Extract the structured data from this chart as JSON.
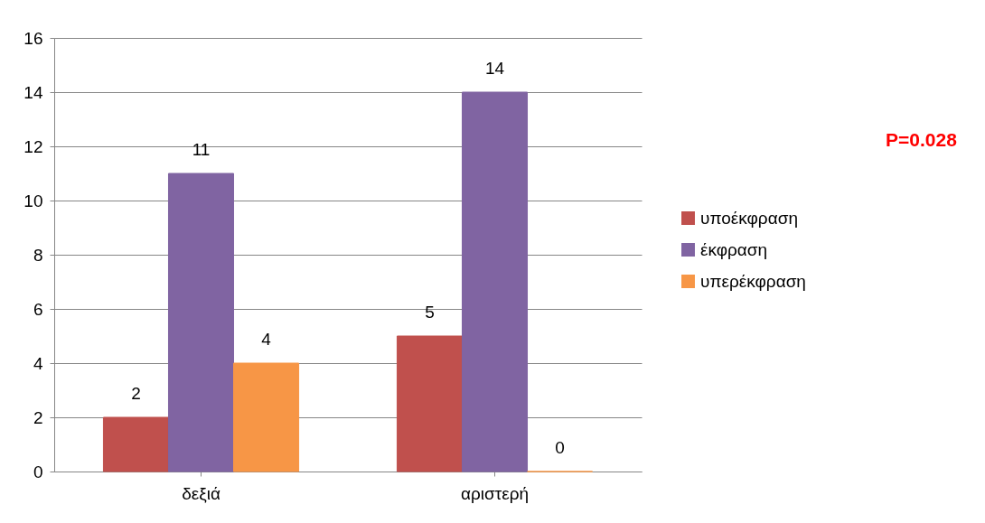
{
  "chart_data": {
    "type": "bar",
    "categories": [
      "δεξιά",
      "αριστερή"
    ],
    "series": [
      {
        "name": "υποέκφραση",
        "color": "#c0504d",
        "values": [
          2,
          5
        ]
      },
      {
        "name": "έκφραση",
        "color": "#8064a2",
        "values": [
          11,
          14
        ]
      },
      {
        "name": "υπερέκφραση",
        "color": "#f79646",
        "values": [
          4,
          0
        ]
      }
    ],
    "ylim": [
      0,
      16
    ],
    "yticks": [
      0,
      2,
      4,
      6,
      8,
      10,
      12,
      14,
      16
    ],
    "grid": "y",
    "legend": "right",
    "data_labels": true,
    "annotations": [
      "P=0.028"
    ]
  }
}
